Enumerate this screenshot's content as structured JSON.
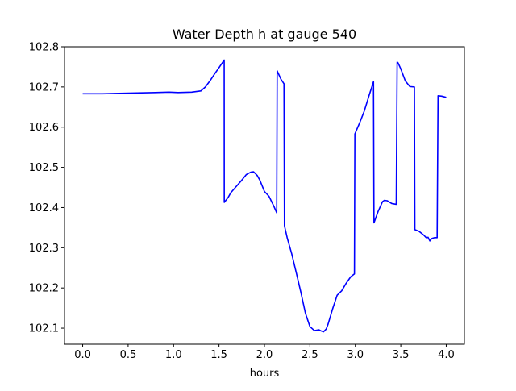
{
  "chart_data": {
    "type": "line",
    "title": "Water Depth h at gauge 540",
    "xlabel": "hours",
    "ylabel": "",
    "xlim": [
      -0.2,
      4.2
    ],
    "ylim": [
      102.06,
      102.8
    ],
    "grid": false,
    "legend": "none",
    "line_color": "#0000ff",
    "x_ticks": [
      0.0,
      0.5,
      1.0,
      1.5,
      2.0,
      2.5,
      3.0,
      3.5,
      4.0
    ],
    "x_tick_labels": [
      "0.0",
      "0.5",
      "1.0",
      "1.5",
      "2.0",
      "2.5",
      "3.0",
      "3.5",
      "4.0"
    ],
    "y_ticks": [
      102.1,
      102.2,
      102.3,
      102.4,
      102.5,
      102.6,
      102.7,
      102.8
    ],
    "y_tick_labels": [
      "102.1",
      "102.2",
      "102.3",
      "102.4",
      "102.5",
      "102.6",
      "102.7",
      "102.8"
    ],
    "series": [
      {
        "x": [
          0.0,
          0.2,
          0.4,
          0.6,
          0.8,
          0.95,
          1.05,
          1.2,
          1.3,
          1.35,
          1.4,
          1.45,
          1.5,
          1.557,
          1.558,
          1.6,
          1.63,
          1.7,
          1.75,
          1.8,
          1.85,
          1.88,
          1.92,
          1.95,
          2.0,
          2.05,
          2.1,
          2.135,
          2.14,
          2.18,
          2.215,
          2.22,
          2.25,
          2.3,
          2.35,
          2.4,
          2.45,
          2.5,
          2.55,
          2.6,
          2.625,
          2.65,
          2.68,
          2.7,
          2.75,
          2.8,
          2.85,
          2.9,
          2.95,
          2.99,
          2.995,
          3.05,
          3.1,
          3.15,
          3.2,
          3.205,
          3.25,
          3.3,
          3.32,
          3.35,
          3.4,
          3.45,
          3.46,
          3.47,
          3.5,
          3.55,
          3.6,
          3.65,
          3.655,
          3.7,
          3.75,
          3.78,
          3.8,
          3.82,
          3.84,
          3.87,
          3.9,
          3.91,
          3.95,
          4.0
        ],
        "y": [
          102.683,
          102.683,
          102.684,
          102.685,
          102.686,
          102.687,
          102.686,
          102.687,
          102.69,
          102.7,
          102.715,
          102.732,
          102.748,
          102.767,
          102.413,
          102.425,
          102.437,
          102.455,
          102.468,
          102.482,
          102.488,
          102.489,
          102.48,
          102.468,
          102.44,
          102.428,
          102.405,
          102.387,
          102.74,
          102.72,
          102.708,
          102.355,
          102.325,
          102.285,
          102.238,
          102.19,
          102.138,
          102.104,
          102.094,
          102.096,
          102.093,
          102.091,
          102.098,
          102.11,
          102.148,
          102.182,
          102.193,
          102.212,
          102.228,
          102.235,
          102.583,
          102.612,
          102.641,
          102.678,
          102.713,
          102.362,
          102.39,
          102.415,
          102.418,
          102.417,
          102.41,
          102.408,
          102.762,
          102.76,
          102.745,
          102.715,
          102.701,
          102.7,
          102.345,
          102.341,
          102.332,
          102.325,
          102.326,
          102.317,
          102.323,
          102.325,
          102.325,
          102.678,
          102.677,
          102.674
        ]
      }
    ]
  }
}
